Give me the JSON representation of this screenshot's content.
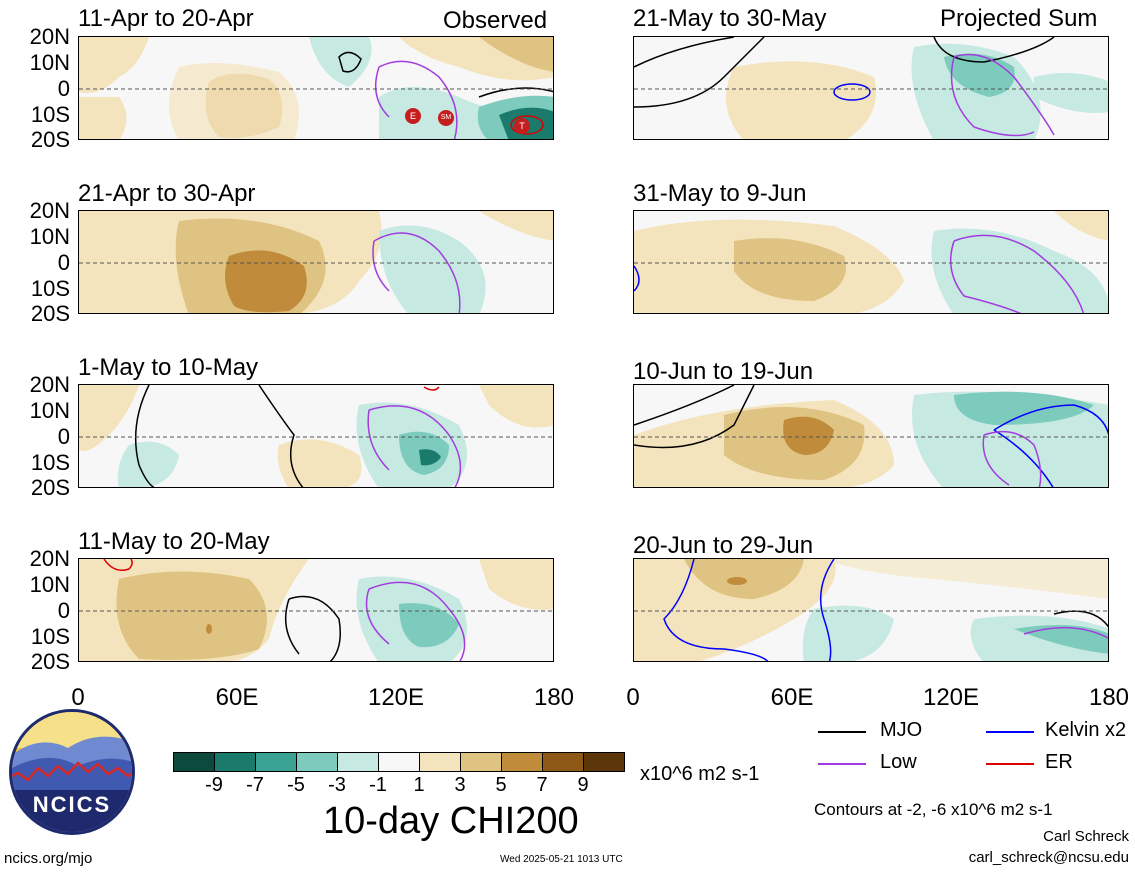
{
  "panels": [
    {
      "title": "11-Apr to 20-Apr",
      "corner": "Observed"
    },
    {
      "title": "21-Apr to 30-Apr",
      "corner": ""
    },
    {
      "title": "1-May to 10-May",
      "corner": ""
    },
    {
      "title": "11-May to 20-May",
      "corner": ""
    },
    {
      "title": "21-May to 30-May",
      "corner": "Projected Sum"
    },
    {
      "title": "31-May to 9-Jun",
      "corner": ""
    },
    {
      "title": "10-Jun to 19-Jun",
      "corner": ""
    },
    {
      "title": "20-Jun to 29-Jun",
      "corner": ""
    }
  ],
  "lat_labels": [
    "20N",
    "10N",
    "0",
    "10S",
    "20S"
  ],
  "lon_labels": [
    "0",
    "60E",
    "120E",
    "180"
  ],
  "colorbar": {
    "colors": [
      "#0c4a3e",
      "#1a7a6c",
      "#3ba393",
      "#7ccbbd",
      "#c6eae2",
      "#f7f7f7",
      "#f4e4bd",
      "#dfc382",
      "#c08c3b",
      "#8e5916",
      "#5a3608"
    ],
    "tick_labels": [
      "-9",
      "-7",
      "-5",
      "-3",
      "-1",
      "1",
      "3",
      "5",
      "7",
      "9"
    ],
    "units": "x10^6 m2 s-1"
  },
  "main_title": "10-day CHI200",
  "legend": [
    {
      "label": "MJO",
      "color": "#000000"
    },
    {
      "label": "Kelvin x2",
      "color": "#0000ff"
    },
    {
      "label": "Low",
      "color": "#a23cdf"
    },
    {
      "label": "ER",
      "color": "#dd0000"
    }
  ],
  "contours_note": "Contours at -2, -6 x10^6 m2 s-1",
  "author": "Carl Schreck",
  "email": "carl_schreck@ncsu.edu",
  "url": "ncics.org/mjo",
  "timestamp": "Wed 2025-05-21 1013 UTC",
  "logo_text": "NCICS",
  "storm_labels": [
    "E",
    "SM",
    "T"
  ]
}
